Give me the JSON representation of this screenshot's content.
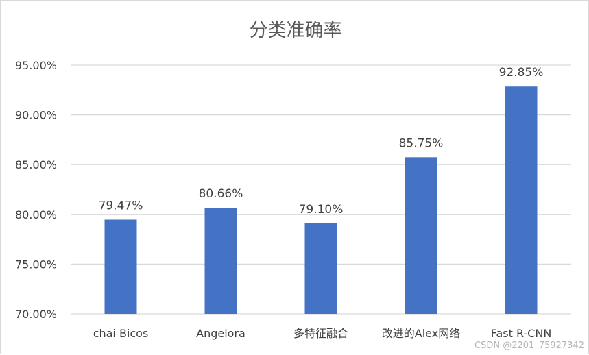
{
  "chart_data": {
    "type": "bar",
    "title": "分类准确率",
    "categories": [
      "chai Bicos",
      "Angelora",
      "多特征融合",
      "改进的Alex网络",
      "Fast R-CNN"
    ],
    "values": [
      79.47,
      80.66,
      79.1,
      85.75,
      92.85
    ],
    "data_labels": [
      "79.47%",
      "80.66%",
      "79.10%",
      "85.75%",
      "92.85%"
    ],
    "ylim": [
      70,
      95
    ],
    "y_ticks": [
      70,
      75,
      80,
      85,
      90,
      95
    ],
    "y_tick_labels": [
      "70.00%",
      "75.00%",
      "80.00%",
      "85.00%",
      "90.00%",
      "95.00%"
    ],
    "xlabel": "",
    "ylabel": "",
    "grid": true,
    "legend": "none",
    "bar_color": "#4472c4",
    "grid_color": "#d9d9d9",
    "text_color": "#404040",
    "title_color": "#595959"
  },
  "watermark": "CSDN @2201_75927342"
}
